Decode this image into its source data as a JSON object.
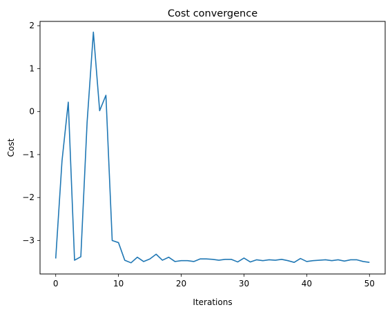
{
  "chart_data": {
    "type": "line",
    "title": "Cost convergence",
    "xlabel": "Iterations",
    "ylabel": "Cost",
    "xlim": [
      -2.5,
      52.5
    ],
    "ylim": [
      -3.78,
      2.1
    ],
    "xticks": [
      0,
      10,
      20,
      30,
      40,
      50
    ],
    "yticks": [
      2,
      1,
      0,
      -1,
      -2,
      -3
    ],
    "ytick_labels": [
      "2",
      "1",
      "0",
      "−1",
      "−2",
      "−3"
    ],
    "grid": false,
    "series": [
      {
        "color": "#1f77b4",
        "x": [
          0,
          1,
          2,
          3,
          4,
          5,
          6,
          7,
          8,
          9,
          10,
          11,
          12,
          13,
          14,
          15,
          16,
          17,
          18,
          19,
          20,
          21,
          22,
          23,
          24,
          25,
          26,
          27,
          28,
          29,
          30,
          31,
          32,
          33,
          34,
          35,
          36,
          37,
          38,
          39,
          40,
          41,
          42,
          43,
          44,
          45,
          46,
          47,
          48,
          49,
          50
        ],
        "y": [
          -3.42,
          -1.15,
          0.22,
          -3.46,
          -3.38,
          -0.25,
          1.85,
          0.02,
          0.38,
          -3.0,
          -3.05,
          -3.46,
          -3.52,
          -3.39,
          -3.49,
          -3.43,
          -3.32,
          -3.46,
          -3.39,
          -3.49,
          -3.47,
          -3.47,
          -3.49,
          -3.43,
          -3.43,
          -3.44,
          -3.46,
          -3.44,
          -3.44,
          -3.5,
          -3.41,
          -3.5,
          -3.45,
          -3.47,
          -3.45,
          -3.46,
          -3.44,
          -3.47,
          -3.51,
          -3.42,
          -3.49,
          -3.47,
          -3.46,
          -3.45,
          -3.47,
          -3.45,
          -3.48,
          -3.45,
          -3.45,
          -3.49,
          -3.51
        ]
      }
    ]
  }
}
